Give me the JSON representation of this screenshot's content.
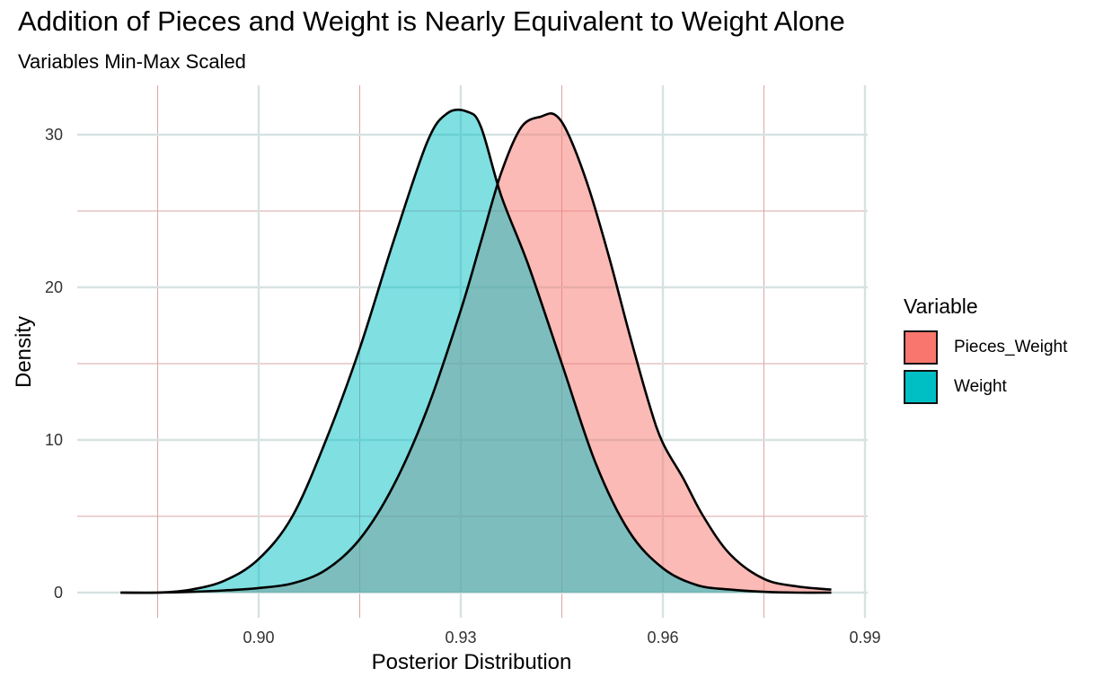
{
  "title": "Addition of Pieces and Weight is Nearly Equivalent to Weight Alone",
  "subtitle": "Variables Min-Max Scaled",
  "chart_data": {
    "type": "area",
    "title": "Addition of Pieces and Weight is Nearly Equivalent to Weight Alone",
    "subtitle": "Variables Min-Max Scaled",
    "xlabel": "Posterior Distribution",
    "ylabel": "Density",
    "xlim": [
      0.8755,
      0.9905
    ],
    "ylim": [
      0,
      32
    ],
    "x_ticks": [
      0.9,
      0.93,
      0.96,
      0.99
    ],
    "x_tick_labels": [
      "0.90",
      "0.93",
      "0.96",
      "0.99"
    ],
    "y_ticks": [
      0,
      10,
      20,
      30
    ],
    "y_tick_labels": [
      "0",
      "10",
      "20",
      "30"
    ],
    "grid": true,
    "legend_title": "Variable",
    "legend_position": "right",
    "series": [
      {
        "name": "Pieces_Weight",
        "color": "#F8766D",
        "x": [
          0.8795,
          0.885,
          0.89,
          0.895,
          0.9,
          0.905,
          0.91,
          0.915,
          0.92,
          0.925,
          0.93,
          0.933,
          0.936,
          0.939,
          0.942,
          0.944,
          0.946,
          0.949,
          0.952,
          0.955,
          0.958,
          0.96,
          0.963,
          0.966,
          0.97,
          0.975,
          0.98,
          0.985
        ],
        "values": [
          0.0,
          0.0,
          0.05,
          0.15,
          0.3,
          0.6,
          1.5,
          3.5,
          7.0,
          12.0,
          18.5,
          23.0,
          27.5,
          30.5,
          31.2,
          31.3,
          30.0,
          26.5,
          22.0,
          17.0,
          12.3,
          9.8,
          7.5,
          5.0,
          2.5,
          0.9,
          0.4,
          0.2
        ]
      },
      {
        "name": "Weight",
        "color": "#00BFC4",
        "x": [
          0.8795,
          0.885,
          0.89,
          0.895,
          0.9,
          0.905,
          0.91,
          0.915,
          0.92,
          0.925,
          0.928,
          0.931,
          0.933,
          0.936,
          0.94,
          0.945,
          0.95,
          0.955,
          0.96,
          0.965,
          0.97,
          0.975,
          0.98,
          0.985
        ],
        "values": [
          0.0,
          0.0,
          0.2,
          0.8,
          2.2,
          5.0,
          10.0,
          16.0,
          23.0,
          29.5,
          31.4,
          31.5,
          30.5,
          26.0,
          21.5,
          15.0,
          8.5,
          4.0,
          1.6,
          0.5,
          0.2,
          0.05,
          0.0,
          0.0
        ]
      }
    ]
  }
}
